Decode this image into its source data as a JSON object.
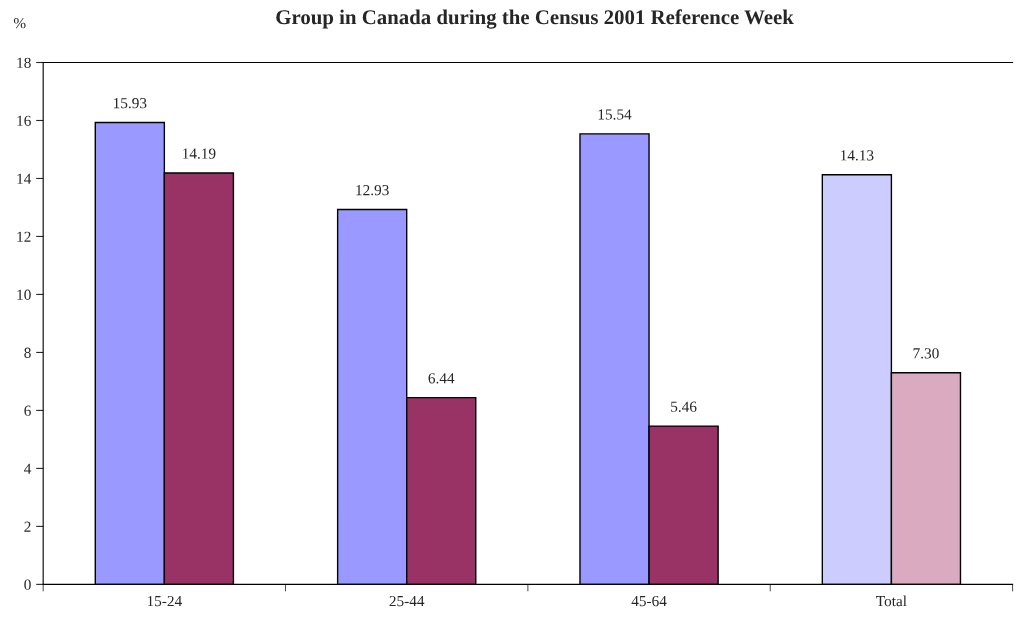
{
  "chart_data": {
    "type": "bar",
    "title": "Group in Canada during the Census 2001 Reference Week",
    "ylabel": "%",
    "categories": [
      "15-24",
      "25-44",
      "45-64",
      "Total"
    ],
    "series": [
      {
        "colors": [
          "#9999ff",
          "#9999ff",
          "#9999ff",
          "#ccccff"
        ],
        "values": [
          15.93,
          12.93,
          15.54,
          14.13
        ]
      },
      {
        "colors": [
          "#993366",
          "#993366",
          "#993366",
          "#d9aac0"
        ],
        "values": [
          14.19,
          6.44,
          5.46,
          7.3
        ]
      }
    ],
    "value_labels": [
      [
        "15.93",
        "12.93",
        "15.54",
        "14.13"
      ],
      [
        "14.19",
        "6.44",
        "5.46",
        "7.30"
      ]
    ],
    "ylim": [
      0,
      18
    ],
    "yticks": [
      0,
      2,
      4,
      6,
      8,
      10,
      12,
      14,
      16,
      18
    ],
    "grid": false,
    "legend": false
  }
}
